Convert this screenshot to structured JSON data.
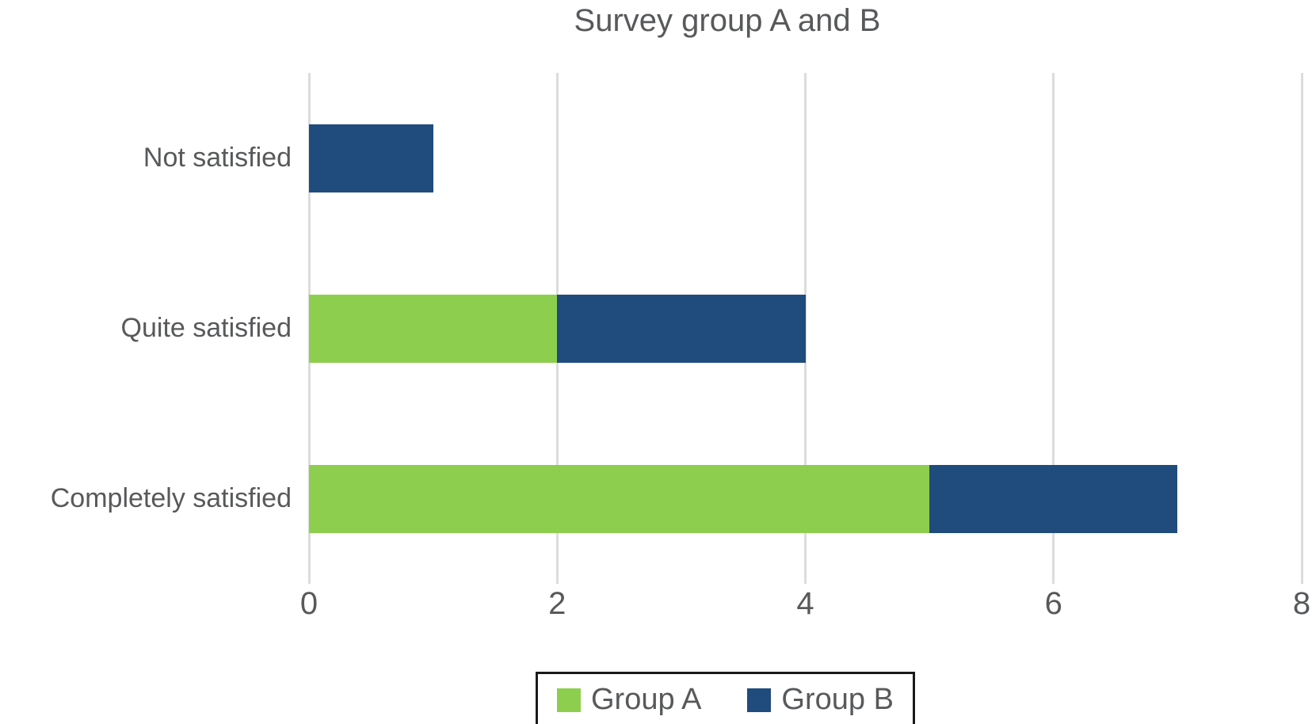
{
  "chart_data": {
    "type": "bar",
    "orientation": "horizontal",
    "stacked": true,
    "title": "Survey group A and B",
    "categories": [
      "Not satisfied",
      "Quite satisfied",
      "Completely satisfied"
    ],
    "series": [
      {
        "name": "Group A",
        "color": "#8ECE4E",
        "values": [
          0,
          2,
          5
        ]
      },
      {
        "name": "Group B",
        "color": "#1F4C7C",
        "values": [
          1,
          2,
          2
        ]
      }
    ],
    "x_ticks": [
      "0",
      "2",
      "4",
      "6",
      "8"
    ],
    "xlim": [
      0,
      8
    ],
    "grid": true,
    "legend_position": "bottom"
  },
  "style": {
    "text_color": "#58595B",
    "gridline_color": "#DCDCDC",
    "legend_border_color": "#1A1A1A",
    "background_color": "#FFFFFF"
  }
}
